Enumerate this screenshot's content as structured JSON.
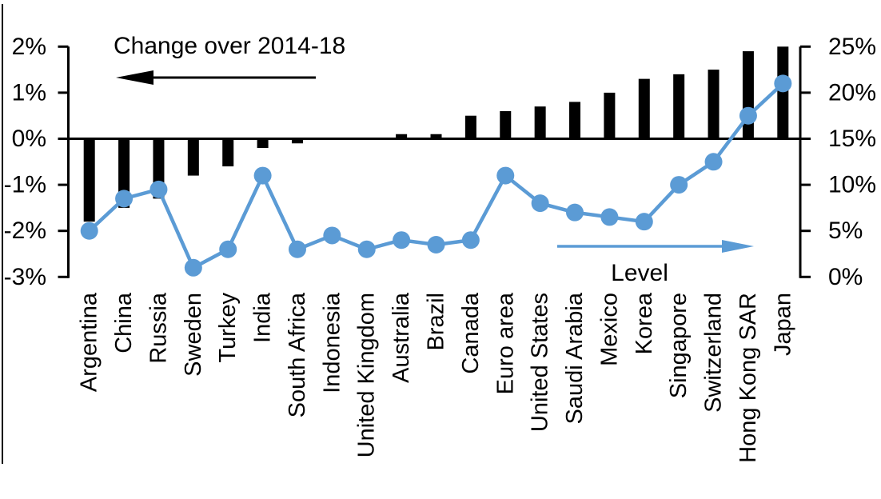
{
  "chart_data": {
    "type": "bar",
    "subtype": "dual-axis-bar-line-combo",
    "title": "",
    "categories": [
      "Argentina",
      "China",
      "Russia",
      "Sweden",
      "Turkey",
      "India",
      "South Africa",
      "Indonesia",
      "United Kingdom",
      "Australia",
      "Brazil",
      "Canada",
      "Euro area",
      "United States",
      "Saudi Arabia",
      "Mexico",
      "Korea",
      "Singapore",
      "Switzerland",
      "Hong Kong SAR",
      "Japan"
    ],
    "series": [
      {
        "name": "Change over 2014-18",
        "type": "bar",
        "axis": "left",
        "color": "#000000",
        "values": [
          -1.8,
          -1.5,
          -1.3,
          -0.8,
          -0.6,
          -0.2,
          -0.1,
          0,
          0,
          0.1,
          0.1,
          0.5,
          0.6,
          0.7,
          0.8,
          1.0,
          1.3,
          1.4,
          1.5,
          1.9,
          2.0
        ]
      },
      {
        "name": "Level",
        "type": "line",
        "axis": "right",
        "color": "#5B9BD5",
        "values": [
          5,
          8.5,
          9.5,
          1,
          3,
          11,
          3,
          4.5,
          3,
          4,
          3.5,
          4,
          11,
          8,
          7,
          6.5,
          6,
          10,
          12.5,
          17.5,
          21
        ]
      }
    ],
    "left_axis": {
      "tick_labels": [
        "2%",
        "1%",
        "0%",
        "-1%",
        "-2%",
        "-3%"
      ],
      "tick_values": [
        2,
        1,
        0,
        -1,
        -2,
        -3
      ],
      "min": -3,
      "max": 2,
      "unit": "%"
    },
    "right_axis": {
      "tick_labels": [
        "25%",
        "20%",
        "15%",
        "10%",
        "5%",
        "0%"
      ],
      "tick_values": [
        25,
        20,
        15,
        10,
        5,
        0
      ],
      "min": 0,
      "max": 25,
      "unit": "%"
    },
    "annotations": [
      {
        "id": "change-label",
        "text": "Change over 2014-18",
        "arrow_direction": "left",
        "color": "#000000"
      },
      {
        "id": "level-label",
        "text": "Level",
        "arrow_direction": "right",
        "color": "#5B9BD5"
      }
    ],
    "grid": "off",
    "legend_position": "none (inline annotations with arrows)"
  }
}
